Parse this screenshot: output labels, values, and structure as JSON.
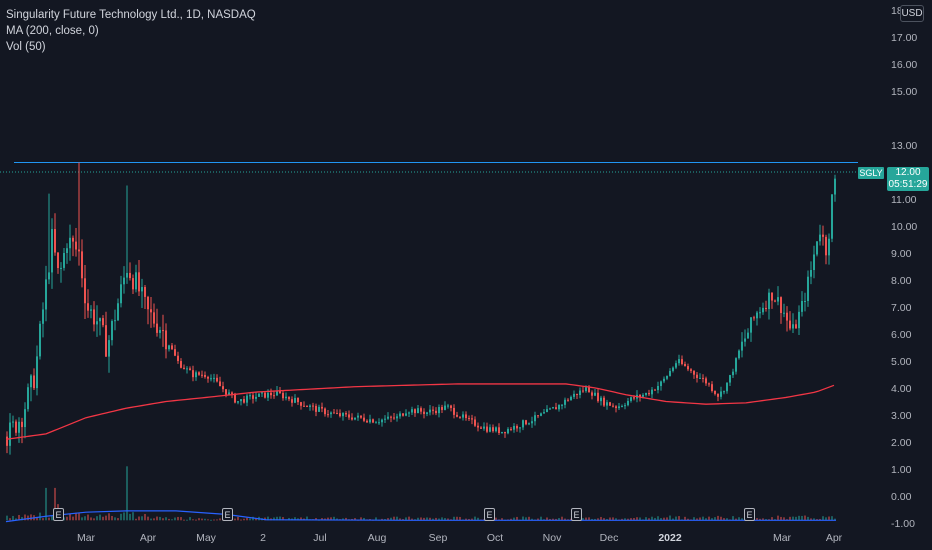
{
  "legend": {
    "title": "Singularity Future Technology Ltd., 1D, NASDAQ",
    "ma": "MA (200, close, 0)",
    "vol": "Vol (50)"
  },
  "currency": "USD",
  "price_tag": {
    "symbol": "SGLY",
    "price": "12.00",
    "countdown": "05:51:29"
  },
  "earnings_label": "E",
  "colors": {
    "background": "#131722",
    "up": "#26a69a",
    "down": "#ef5350",
    "ma": "#f23645",
    "vol_ma": "#2962ff",
    "hline": "#2196f3"
  },
  "chart_data": {
    "type": "candlestick",
    "title": "Singularity Future Technology Ltd., 1D, NASDAQ",
    "y_ticks": [
      "-1.00",
      "0.00",
      "1.00",
      "2.00",
      "3.00",
      "4.00",
      "5.00",
      "6.00",
      "7.00",
      "8.00",
      "9.00",
      "10.00",
      "11.00",
      "12.00",
      "13.00",
      "15.00",
      "16.00",
      "17.00",
      "18.00"
    ],
    "x_ticks": [
      "Mar",
      "Apr",
      "May",
      "2",
      "Jul",
      "Aug",
      "Sep",
      "Oct",
      "Nov",
      "Dec",
      "2022",
      "Mar",
      "Apr"
    ],
    "ylim": [
      -1,
      18
    ],
    "horizontal_line": 12.35,
    "last_price": 12.0,
    "ma200": [
      {
        "t": 0,
        "v": 2.1
      },
      {
        "t": 40,
        "v": 2.3
      },
      {
        "t": 80,
        "v": 2.9
      },
      {
        "t": 120,
        "v": 3.25
      },
      {
        "t": 160,
        "v": 3.5
      },
      {
        "t": 200,
        "v": 3.65
      },
      {
        "t": 250,
        "v": 3.85
      },
      {
        "t": 300,
        "v": 3.95
      },
      {
        "t": 350,
        "v": 4.05
      },
      {
        "t": 400,
        "v": 4.1
      },
      {
        "t": 450,
        "v": 4.15
      },
      {
        "t": 500,
        "v": 4.15
      },
      {
        "t": 560,
        "v": 4.15
      },
      {
        "t": 590,
        "v": 4.0
      },
      {
        "t": 620,
        "v": 3.75
      },
      {
        "t": 660,
        "v": 3.5
      },
      {
        "t": 700,
        "v": 3.4
      },
      {
        "t": 740,
        "v": 3.45
      },
      {
        "t": 780,
        "v": 3.65
      },
      {
        "t": 810,
        "v": 3.85
      },
      {
        "t": 828,
        "v": 4.1
      }
    ],
    "price_path": [
      {
        "t": 0,
        "v": 2.2
      },
      {
        "t": 15,
        "v": 3.0
      },
      {
        "t": 28,
        "v": 4.5
      },
      {
        "t": 38,
        "v": 7.5
      },
      {
        "t": 45,
        "v": 9.5
      },
      {
        "t": 52,
        "v": 8.0
      },
      {
        "t": 60,
        "v": 9.5
      },
      {
        "t": 72,
        "v": 9.0
      },
      {
        "t": 80,
        "v": 7.0
      },
      {
        "t": 90,
        "v": 6.5
      },
      {
        "t": 100,
        "v": 5.5
      },
      {
        "t": 110,
        "v": 7.0
      },
      {
        "t": 120,
        "v": 8.5
      },
      {
        "t": 130,
        "v": 7.8
      },
      {
        "t": 140,
        "v": 6.8
      },
      {
        "t": 155,
        "v": 6.2
      },
      {
        "t": 170,
        "v": 5.0
      },
      {
        "t": 185,
        "v": 4.5
      },
      {
        "t": 200,
        "v": 4.5
      },
      {
        "t": 215,
        "v": 4.0
      },
      {
        "t": 230,
        "v": 3.5
      },
      {
        "t": 250,
        "v": 3.7
      },
      {
        "t": 270,
        "v": 3.8
      },
      {
        "t": 290,
        "v": 3.5
      },
      {
        "t": 310,
        "v": 3.2
      },
      {
        "t": 330,
        "v": 3.0
      },
      {
        "t": 350,
        "v": 2.9
      },
      {
        "t": 370,
        "v": 2.8
      },
      {
        "t": 390,
        "v": 2.9
      },
      {
        "t": 400,
        "v": 3.2
      },
      {
        "t": 420,
        "v": 3.1
      },
      {
        "t": 440,
        "v": 3.3
      },
      {
        "t": 460,
        "v": 2.8
      },
      {
        "t": 480,
        "v": 2.5
      },
      {
        "t": 495,
        "v": 2.4
      },
      {
        "t": 510,
        "v": 2.6
      },
      {
        "t": 530,
        "v": 2.9
      },
      {
        "t": 550,
        "v": 3.3
      },
      {
        "t": 565,
        "v": 3.7
      },
      {
        "t": 580,
        "v": 4.0
      },
      {
        "t": 595,
        "v": 3.5
      },
      {
        "t": 610,
        "v": 3.3
      },
      {
        "t": 625,
        "v": 3.6
      },
      {
        "t": 640,
        "v": 3.8
      },
      {
        "t": 655,
        "v": 4.2
      },
      {
        "t": 670,
        "v": 5.0
      },
      {
        "t": 685,
        "v": 4.6
      },
      {
        "t": 700,
        "v": 4.2
      },
      {
        "t": 712,
        "v": 3.7
      },
      {
        "t": 722,
        "v": 4.3
      },
      {
        "t": 735,
        "v": 5.6
      },
      {
        "t": 750,
        "v": 6.8
      },
      {
        "t": 765,
        "v": 7.5
      },
      {
        "t": 775,
        "v": 7.0
      },
      {
        "t": 785,
        "v": 6.0
      },
      {
        "t": 795,
        "v": 7.0
      },
      {
        "t": 805,
        "v": 8.5
      },
      {
        "t": 812,
        "v": 10.0
      },
      {
        "t": 820,
        "v": 9.0
      },
      {
        "t": 825,
        "v": 11.0
      },
      {
        "t": 830,
        "v": 12.0
      }
    ],
    "spikes": [
      {
        "t": 42,
        "v": 11.2
      },
      {
        "t": 73,
        "v": 12.35
      },
      {
        "t": 121,
        "v": 11.5
      }
    ],
    "volume_spikes": [
      {
        "t": 40,
        "v": 1.2
      },
      {
        "t": 48,
        "v": 1.2
      },
      {
        "t": 52,
        "v": 0.6
      },
      {
        "t": 120,
        "v": 2.0
      },
      {
        "t": 125,
        "v": 0.3
      }
    ]
  }
}
